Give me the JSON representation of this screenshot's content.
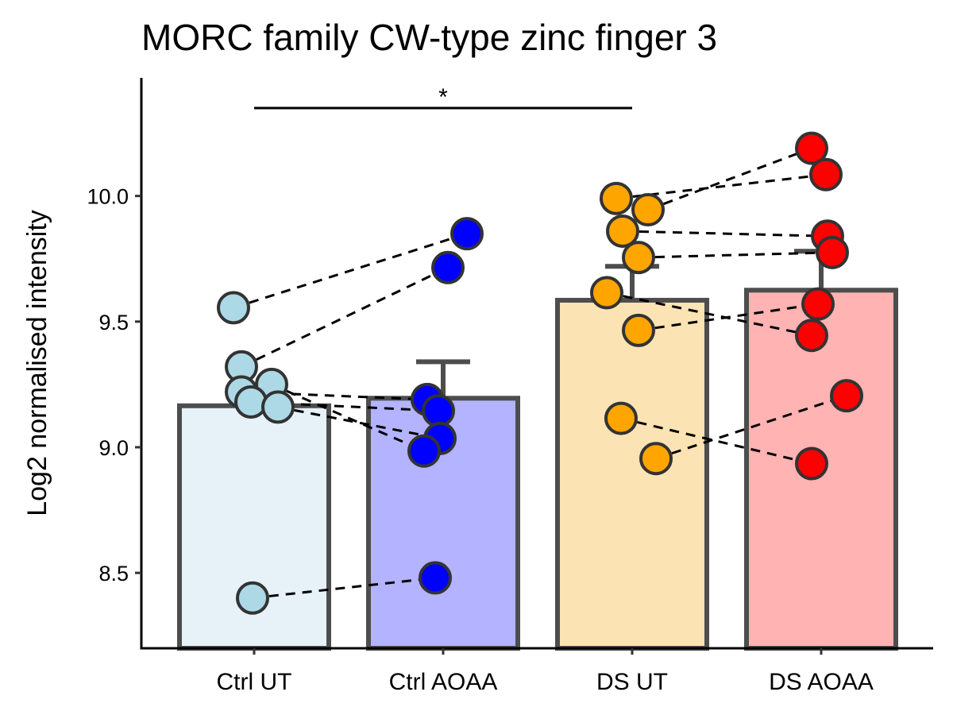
{
  "chart_data": {
    "type": "bar",
    "title": "MORC family CW-type zinc finger 3",
    "xlabel": "",
    "ylabel": "Log2 normalised intensity",
    "ylim": [
      8.2,
      10.47
    ],
    "yticks": [
      8.5,
      9.0,
      9.5,
      10.0
    ],
    "ytick_labels": [
      "8.5",
      "9.0",
      "9.5",
      "10.0"
    ],
    "categories": [
      "Ctrl UT",
      "Ctrl AOAA",
      "DS UT",
      "DS AOAA"
    ],
    "values": [
      9.165,
      9.195,
      9.585,
      9.625
    ],
    "error_upper": [
      null,
      9.34,
      9.72,
      9.78
    ],
    "bar_fill_colors": [
      "#e6f2f8",
      "#b3b3ff",
      "#fbe3b4",
      "#ffb3b3"
    ],
    "point_colors": [
      "#add8e6",
      "#0000ff",
      "#ffa500",
      "#ff0000"
    ],
    "points": [
      [
        9.555,
        9.32,
        9.25,
        9.22,
        9.18,
        9.16,
        8.4
      ],
      [
        9.85,
        9.715,
        9.19,
        9.145,
        9.035,
        8.985,
        8.48
      ],
      [
        9.99,
        9.945,
        9.86,
        9.755,
        9.615,
        9.465,
        9.115,
        8.955
      ],
      [
        10.19,
        10.085,
        9.84,
        9.775,
        9.57,
        9.445,
        9.205,
        8.935
      ]
    ],
    "pairs": [
      {
        "from": [
          0,
          9.555
        ],
        "to": [
          1,
          9.85
        ]
      },
      {
        "from": [
          0,
          9.32
        ],
        "to": [
          1,
          9.715
        ]
      },
      {
        "from": [
          0,
          9.22
        ],
        "to": [
          1,
          9.19
        ]
      },
      {
        "from": [
          0,
          9.18
        ],
        "to": [
          1,
          9.145
        ]
      },
      {
        "from": [
          0,
          9.16
        ],
        "to": [
          1,
          9.035
        ]
      },
      {
        "from": [
          0,
          9.25
        ],
        "to": [
          1,
          8.985
        ]
      },
      {
        "from": [
          0,
          8.4
        ],
        "to": [
          1,
          8.48
        ]
      },
      {
        "from": [
          2,
          9.945
        ],
        "to": [
          3,
          10.19
        ]
      },
      {
        "from": [
          2,
          9.99
        ],
        "to": [
          3,
          10.085
        ]
      },
      {
        "from": [
          2,
          9.86
        ],
        "to": [
          3,
          9.84
        ]
      },
      {
        "from": [
          2,
          9.755
        ],
        "to": [
          3,
          9.775
        ]
      },
      {
        "from": [
          2,
          9.615
        ],
        "to": [
          3,
          9.445
        ]
      },
      {
        "from": [
          2,
          9.465
        ],
        "to": [
          3,
          9.57
        ]
      },
      {
        "from": [
          2,
          9.115
        ],
        "to": [
          3,
          8.935
        ]
      },
      {
        "from": [
          2,
          8.955
        ],
        "to": [
          3,
          9.205
        ]
      }
    ],
    "significance": {
      "from_category": "Ctrl UT",
      "to_category": "DS UT",
      "label": "*",
      "y": 10.35
    },
    "grid": false,
    "legend": "none"
  }
}
